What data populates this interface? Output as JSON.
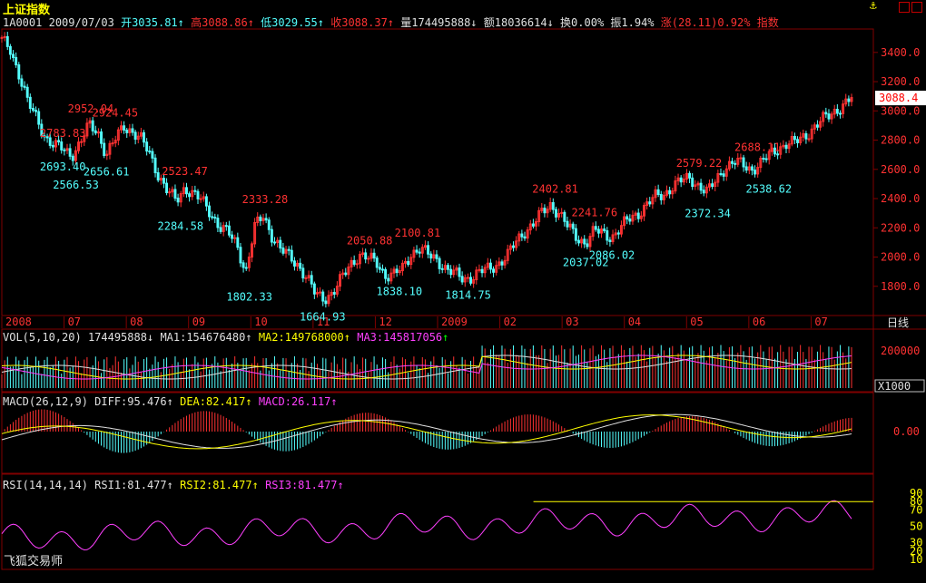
{
  "header": {
    "index_name": "上证指数",
    "code": "1A0001",
    "date": "2009/07/03",
    "open": "开3035.81",
    "high": "高3088.86",
    "low": "低3029.55",
    "close": "收3088.37",
    "volume": "量174495888",
    "amount": "额18036614",
    "turnover": "换0.00%",
    "amplitude": "振1.94%",
    "change": "涨(28.11)0.92%",
    "tag": "指数",
    "up_arrow": "↑",
    "down_arrow": "↓"
  },
  "watermark": "飞狐交易师",
  "period_label": "日线",
  "last_price_tag": "3088.4",
  "colors": {
    "up": "#ff3232",
    "down": "#54ffff",
    "grid": "#800000",
    "ma1": "#e0e0e0",
    "ma2": "#ffff00",
    "ma3": "#ff40ff"
  },
  "vol_panel": {
    "label": "VOL(5,10,20)",
    "value": "174495888",
    "ma1": "MA1:154676480",
    "ma2": "MA2:149768000",
    "ma3": "MA3:145817056",
    "unit": "X1000",
    "axis_label": "200000"
  },
  "macd_panel": {
    "label": "MACD(26,12,9)",
    "diff": "DIFF:95.476",
    "dea": "DEA:82.417",
    "macd": "MACD:26.117",
    "axis_label": "0.00"
  },
  "rsi_panel": {
    "label": "RSI(14,14,14)",
    "rsi1": "RSI1:81.477",
    "rsi2": "RSI2:81.477",
    "rsi3": "RSI3:81.477",
    "axis_labels": [
      "90",
      "80",
      "70",
      "50",
      "30",
      "20",
      "10"
    ]
  },
  "chart_data": {
    "type": "candlestick",
    "title": "上证指数",
    "y_ticks": [
      3400,
      3200,
      3000,
      2800,
      2600,
      2400,
      2200,
      2000,
      1800
    ],
    "ylim": [
      1600,
      3560
    ],
    "x_labels": [
      "2008",
      "07",
      "08",
      "09",
      "10",
      "11",
      "12",
      "2009",
      "02",
      "03",
      "04",
      "05",
      "06",
      "07"
    ],
    "annotations": [
      {
        "text": "2952.04",
        "type": "high",
        "x": 0.102,
        "v": 2952
      },
      {
        "text": "2924.45",
        "type": "high",
        "x": 0.13,
        "v": 2924
      },
      {
        "text": "2783.83",
        "type": "high",
        "x": 0.07,
        "v": 2784
      },
      {
        "text": "2693.40",
        "type": "low",
        "x": 0.07,
        "v": 2693
      },
      {
        "text": "2656.61",
        "type": "low",
        "x": 0.12,
        "v": 2657
      },
      {
        "text": "2566.53",
        "type": "low",
        "x": 0.085,
        "v": 2567
      },
      {
        "text": "2523.47",
        "type": "high",
        "x": 0.21,
        "v": 2523
      },
      {
        "text": "2284.58",
        "type": "low",
        "x": 0.205,
        "v": 2285
      },
      {
        "text": "2333.28",
        "type": "high",
        "x": 0.302,
        "v": 2333
      },
      {
        "text": "1802.33",
        "type": "low",
        "x": 0.284,
        "v": 1802
      },
      {
        "text": "1664.93",
        "type": "low",
        "x": 0.368,
        "v": 1665
      },
      {
        "text": "2050.88",
        "type": "high",
        "x": 0.422,
        "v": 2051
      },
      {
        "text": "2100.81",
        "type": "high",
        "x": 0.477,
        "v": 2101
      },
      {
        "text": "1838.10",
        "type": "low",
        "x": 0.456,
        "v": 1838
      },
      {
        "text": "1814.75",
        "type": "low",
        "x": 0.535,
        "v": 1815
      },
      {
        "text": "2402.81",
        "type": "high",
        "x": 0.635,
        "v": 2403
      },
      {
        "text": "2241.76",
        "type": "high",
        "x": 0.68,
        "v": 2242
      },
      {
        "text": "2086.02",
        "type": "low",
        "x": 0.7,
        "v": 2086
      },
      {
        "text": "2037.02",
        "type": "low",
        "x": 0.67,
        "v": 2037
      },
      {
        "text": "2579.22",
        "type": "high",
        "x": 0.8,
        "v": 2579
      },
      {
        "text": "2372.34",
        "type": "low",
        "x": 0.81,
        "v": 2372
      },
      {
        "text": "2688.11",
        "type": "high",
        "x": 0.867,
        "v": 2688
      },
      {
        "text": "2538.62",
        "type": "low",
        "x": 0.88,
        "v": 2539
      }
    ],
    "close_path": [
      [
        0,
        3480
      ],
      [
        0.01,
        3420
      ],
      [
        0.02,
        3250
      ],
      [
        0.03,
        3050
      ],
      [
        0.04,
        2950
      ],
      [
        0.05,
        2820
      ],
      [
        0.06,
        2760
      ],
      [
        0.07,
        2740
      ],
      [
        0.08,
        2700
      ],
      [
        0.09,
        2780
      ],
      [
        0.1,
        2900
      ],
      [
        0.11,
        2860
      ],
      [
        0.12,
        2700
      ],
      [
        0.13,
        2800
      ],
      [
        0.14,
        2900
      ],
      [
        0.15,
        2860
      ],
      [
        0.16,
        2800
      ],
      [
        0.17,
        2700
      ],
      [
        0.18,
        2560
      ],
      [
        0.19,
        2450
      ],
      [
        0.2,
        2380
      ],
      [
        0.21,
        2480
      ],
      [
        0.22,
        2430
      ],
      [
        0.23,
        2380
      ],
      [
        0.24,
        2300
      ],
      [
        0.25,
        2210
      ],
      [
        0.26,
        2160
      ],
      [
        0.27,
        2080
      ],
      [
        0.28,
        1900
      ],
      [
        0.29,
        2200
      ],
      [
        0.3,
        2280
      ],
      [
        0.31,
        2150
      ],
      [
        0.32,
        2050
      ],
      [
        0.33,
        2000
      ],
      [
        0.34,
        1950
      ],
      [
        0.35,
        1860
      ],
      [
        0.36,
        1740
      ],
      [
        0.37,
        1720
      ],
      [
        0.38,
        1760
      ],
      [
        0.39,
        1850
      ],
      [
        0.4,
        1950
      ],
      [
        0.41,
        2020
      ],
      [
        0.42,
        1990
      ],
      [
        0.43,
        1960
      ],
      [
        0.44,
        1880
      ],
      [
        0.45,
        1880
      ],
      [
        0.46,
        1920
      ],
      [
        0.47,
        2030
      ],
      [
        0.48,
        2060
      ],
      [
        0.49,
        2010
      ],
      [
        0.5,
        1980
      ],
      [
        0.51,
        1920
      ],
      [
        0.52,
        1880
      ],
      [
        0.53,
        1850
      ],
      [
        0.54,
        1870
      ],
      [
        0.55,
        1900
      ],
      [
        0.56,
        1920
      ],
      [
        0.57,
        1960
      ],
      [
        0.58,
        2010
      ],
      [
        0.59,
        2100
      ],
      [
        0.6,
        2180
      ],
      [
        0.61,
        2230
      ],
      [
        0.62,
        2300
      ],
      [
        0.63,
        2360
      ],
      [
        0.64,
        2300
      ],
      [
        0.65,
        2200
      ],
      [
        0.66,
        2130
      ],
      [
        0.67,
        2100
      ],
      [
        0.68,
        2180
      ],
      [
        0.69,
        2160
      ],
      [
        0.7,
        2140
      ],
      [
        0.71,
        2200
      ],
      [
        0.72,
        2260
      ],
      [
        0.73,
        2300
      ],
      [
        0.74,
        2360
      ],
      [
        0.75,
        2410
      ],
      [
        0.76,
        2430
      ],
      [
        0.77,
        2490
      ],
      [
        0.78,
        2520
      ],
      [
        0.79,
        2540
      ],
      [
        0.8,
        2490
      ],
      [
        0.81,
        2440
      ],
      [
        0.82,
        2530
      ],
      [
        0.83,
        2620
      ],
      [
        0.84,
        2650
      ],
      [
        0.85,
        2630
      ],
      [
        0.86,
        2600
      ],
      [
        0.87,
        2640
      ],
      [
        0.88,
        2690
      ],
      [
        0.89,
        2740
      ],
      [
        0.9,
        2780
      ],
      [
        0.91,
        2780
      ],
      [
        0.92,
        2820
      ],
      [
        0.93,
        2880
      ],
      [
        0.94,
        2930
      ],
      [
        0.95,
        2970
      ],
      [
        0.96,
        3020
      ],
      [
        0.97,
        3060
      ],
      [
        0.975,
        3088
      ]
    ]
  }
}
